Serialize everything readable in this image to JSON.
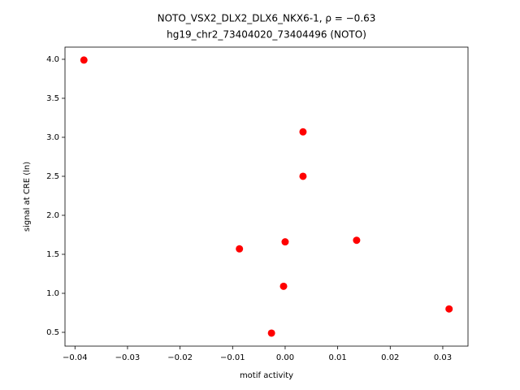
{
  "chart_data": {
    "type": "scatter",
    "title": "NOTO_VSX2_DLX2_DLX6_NKX6-1, ρ = −0.63",
    "subtitle": "hg19_chr2_73404020_73404496 (NOTO)",
    "x_label": "motif activity",
    "y_label": "signal at CRE (ln)",
    "color": "#ff0000",
    "series": [
      {
        "x": [
          -0.0383,
          0.0034,
          0.0034,
          -0.0087,
          0.0,
          0.0136,
          -0.0003,
          0.0312,
          -0.0026
        ],
        "values": [
          3.99,
          3.07,
          2.5,
          1.57,
          1.66,
          1.68,
          1.09,
          0.8,
          0.49
        ]
      }
    ],
    "xlim": [
      -0.0419,
      0.0348
    ],
    "ylim": [
      0.323,
      4.156
    ],
    "xticks": [
      {
        "value": -0.04,
        "label": "−0.04"
      },
      {
        "value": -0.03,
        "label": "−0.03"
      },
      {
        "value": -0.02,
        "label": "−0.02"
      },
      {
        "value": -0.01,
        "label": "−0.01"
      },
      {
        "value": 0,
        "label": "0.00"
      },
      0.01,
      0.02,
      0.03
    ],
    "yticks": [
      0.5,
      {
        "value": 1,
        "label": "1.0"
      },
      1.5,
      {
        "value": 2,
        "label": "2.0"
      },
      2.5,
      {
        "value": 3,
        "label": "3.0"
      },
      3.5,
      {
        "value": 4,
        "label": "4.0"
      }
    ]
  }
}
